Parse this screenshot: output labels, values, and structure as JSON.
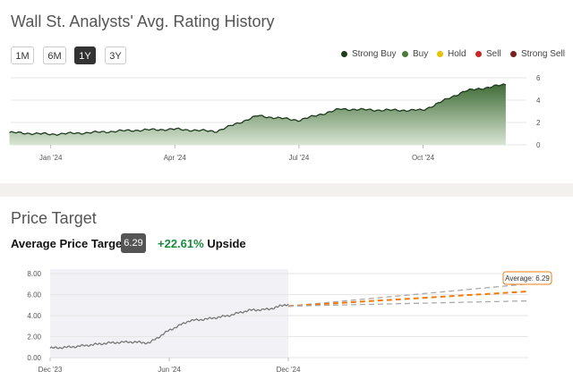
{
  "rating_section": {
    "title": "Wall St. Analysts' Avg. Rating History",
    "range_buttons": [
      {
        "label": "1M",
        "active": false
      },
      {
        "label": "6M",
        "active": false
      },
      {
        "label": "1Y",
        "active": true
      },
      {
        "label": "3Y",
        "active": false
      }
    ],
    "legend": [
      {
        "label": "Strong Buy",
        "color": "#1e3b1e"
      },
      {
        "label": "Buy",
        "color": "#4a7c3a"
      },
      {
        "label": "Hold",
        "color": "#e6c300"
      },
      {
        "label": "Sell",
        "color": "#c62828"
      },
      {
        "label": "Strong Sell",
        "color": "#7a1f1f"
      }
    ]
  },
  "price_section": {
    "title": "Price Target",
    "avg_label": "Average Price Target",
    "avg_value": "6.29",
    "upside_pct": "+22.61%",
    "upside_word": "Upside",
    "tooltip": "Average: 6.29"
  },
  "chart_data": [
    {
      "type": "area",
      "title": "",
      "x_tick_labels": [
        "Jan '24",
        "Apr '24",
        "Jul '24",
        "Oct '24"
      ],
      "y_tick_labels": [
        "0",
        "2",
        "4",
        "6"
      ],
      "ylim": [
        0,
        6
      ],
      "series": [
        {
          "color": "#3f6b36",
          "x": [
            "2023-12",
            "2024-01",
            "2024-02",
            "2024-03",
            "2024-04",
            "2024-05",
            "2024-06",
            "2024-07",
            "2024-08",
            "2024-09",
            "2024-10",
            "2024-11",
            "2024-12"
          ],
          "values": [
            1.1,
            0.95,
            1.1,
            1.3,
            1.4,
            1.2,
            2.6,
            2.2,
            3.2,
            3.1,
            3.1,
            4.8,
            5.4
          ]
        }
      ]
    },
    {
      "type": "line",
      "title": "",
      "x_tick_labels": [
        "Dec '23",
        "Jun '24",
        "Dec '24"
      ],
      "y_tick_labels": [
        "0.00",
        "2.00",
        "4.00",
        "6.00",
        "8.00"
      ],
      "ylim": [
        0,
        8
      ],
      "series": [
        {
          "color": "#777777",
          "x": [
            "2023-12",
            "2024-01",
            "2024-02",
            "2024-03",
            "2024-04",
            "2024-05",
            "2024-06",
            "2024-07",
            "2024-08",
            "2024-09",
            "2024-10",
            "2024-11",
            "2024-12"
          ],
          "values": [
            0.9,
            1.0,
            1.2,
            1.4,
            1.5,
            1.4,
            2.6,
            3.5,
            3.7,
            4.0,
            4.5,
            4.6,
            5.1
          ]
        },
        {
          "color": "#aaaaaa",
          "x": [
            "2024-12",
            "2025-12"
          ],
          "values": [
            4.9,
            7.0
          ]
        },
        {
          "color": "#f07c10",
          "x": [
            "2024-12",
            "2025-12"
          ],
          "values": [
            4.9,
            6.29
          ]
        },
        {
          "color": "#aaaaaa",
          "x": [
            "2024-12",
            "2025-12"
          ],
          "values": [
            4.9,
            5.4
          ]
        }
      ]
    }
  ]
}
